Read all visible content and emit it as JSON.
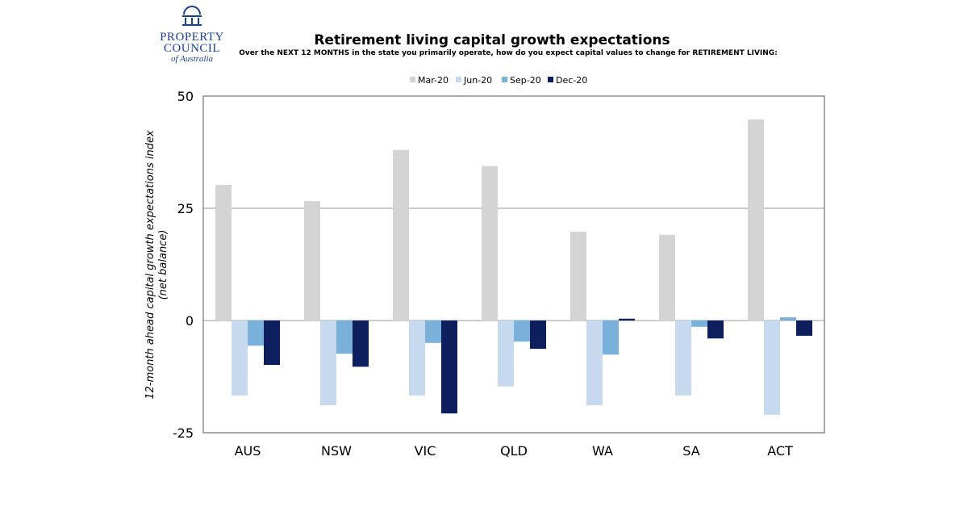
{
  "logo": {
    "line1": "PROPERTY",
    "line2": "COUNCIL",
    "line3": "of Australia"
  },
  "chart_data": {
    "type": "bar",
    "title": "Retirement living capital growth expectations",
    "subtitle": "Over the NEXT 12 MONTHS in the state you primarily operate, how do you expect capital values to change for RETIREMENT LIVING:",
    "ylabel": "12-month ahead capital growth expectations index (net balance)",
    "ylabel_lines": [
      "12-month ahead capital growth expectations index",
      "(net balance)"
    ],
    "xlabel": "",
    "ylim": [
      -25,
      50
    ],
    "yticks": [
      -25,
      0,
      25,
      50
    ],
    "grid": true,
    "legend": "top",
    "categories": [
      "AUS",
      "NSW",
      "VIC",
      "QLD",
      "WA",
      "SA",
      "ACT"
    ],
    "series": [
      {
        "name": "Mar-20",
        "color": "#d4d4d4",
        "values": [
          30.2,
          26.6,
          38.0,
          34.4,
          19.8,
          19.1,
          44.8
        ]
      },
      {
        "name": "Jun-20",
        "color": "#c6d9ee",
        "values": [
          -16.7,
          -18.9,
          -16.7,
          -14.7,
          -18.9,
          -16.7,
          -21.0
        ]
      },
      {
        "name": "Sep-20",
        "color": "#79b1da",
        "values": [
          -5.6,
          -7.4,
          -5.0,
          -4.7,
          -7.6,
          -1.4,
          0.7
        ]
      },
      {
        "name": "Dec-20",
        "color": "#0d1f5c",
        "values": [
          -9.9,
          -10.3,
          -20.7,
          -6.3,
          0.4,
          -4.0,
          -3.4
        ]
      }
    ]
  }
}
